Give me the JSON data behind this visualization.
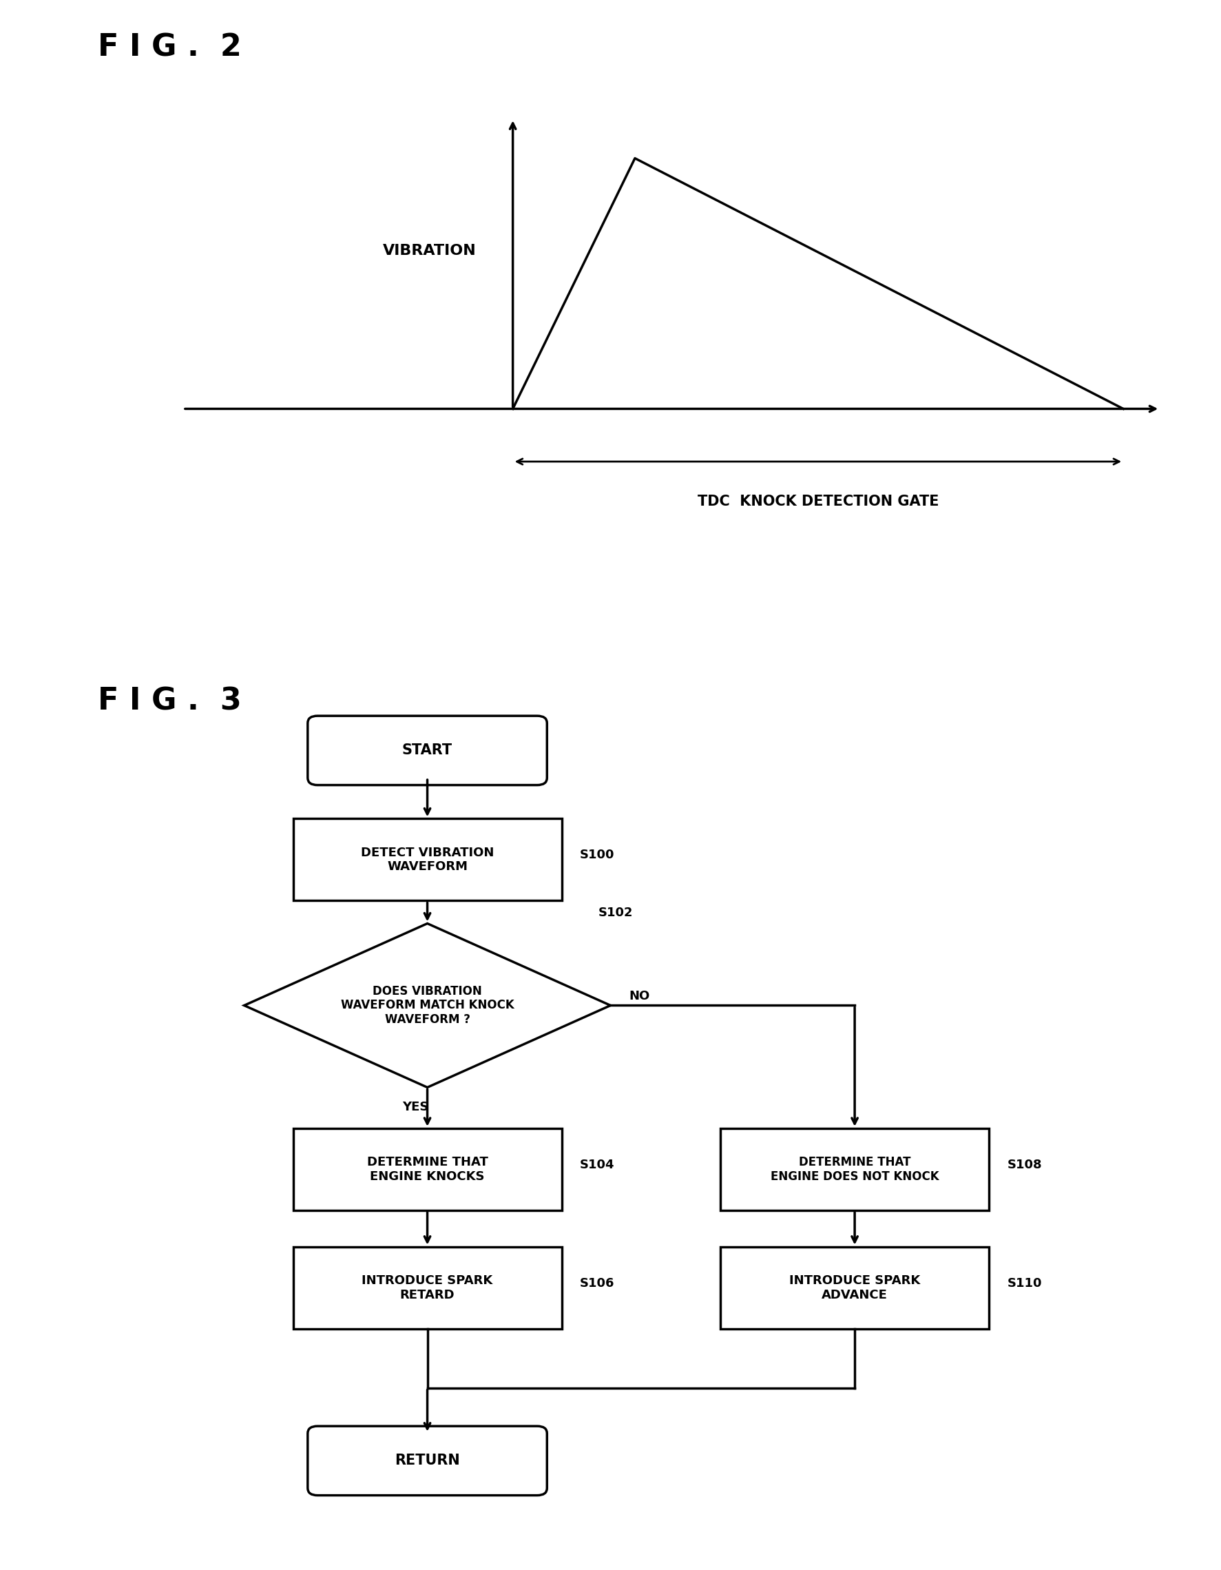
{
  "fig2_title": "F I G .  2",
  "fig3_title": "F I G .  3",
  "vibration_label": "VIBRATION",
  "tdc_label": "TDC  KNOCK DETECTION GATE",
  "flowchart": {
    "start_label": "START",
    "s100_label": "DETECT VIBRATION\nWAVEFORM",
    "s100_step": "S100",
    "s102_label": "DOES VIBRATION\nWAVEFORM MATCH KNOCK\nWAVEFORM ?",
    "s102_step": "S102",
    "yes_label": "YES",
    "no_label": "NO",
    "s104_label": "DETERMINE THAT\nENGINE KNOCKS",
    "s104_step": "S104",
    "s106_label": "INTRODUCE SPARK\nRETARD",
    "s106_step": "S106",
    "s108_label": "DETERMINE THAT\nENGINE DOES NOT KNOCK",
    "s108_step": "S108",
    "s110_label": "INTRODUCE SPARK\nADVANCE",
    "s110_step": "S110",
    "return_label": "RETURN"
  },
  "bg_color": "#ffffff",
  "line_color": "#000000"
}
